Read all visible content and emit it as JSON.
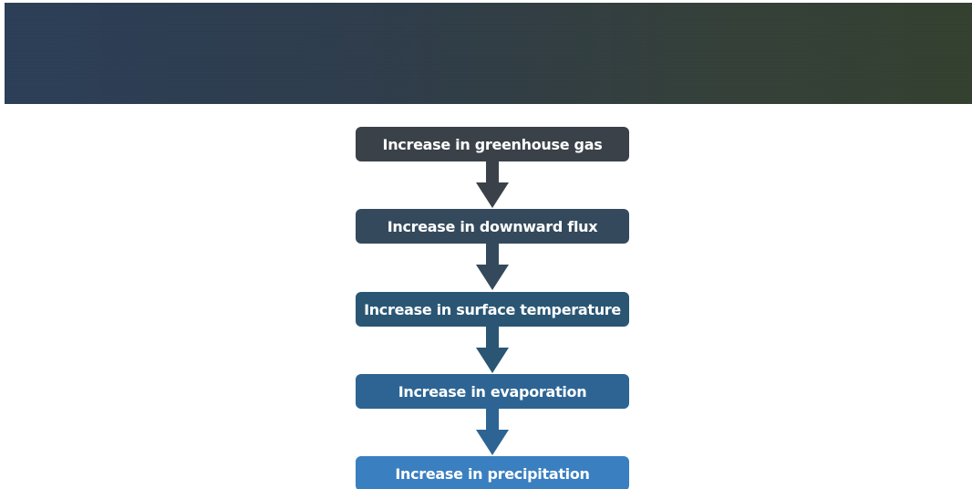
{
  "flowchart": {
    "steps": [
      {
        "label": "Increase in greenhouse gas",
        "color": "#3a4148"
      },
      {
        "label": "Increase in downward flux",
        "color": "#344a5c"
      },
      {
        "label": "Increase in surface temperature",
        "color": "#2a5674"
      },
      {
        "label": "Increase in evaporation",
        "color": "#2d6493"
      },
      {
        "label": "Increase in precipitation",
        "color": "#3a7fc0"
      }
    ],
    "arrow_colors": [
      "#3a4148",
      "#344a5c",
      "#2a5674",
      "#2d6493"
    ]
  }
}
